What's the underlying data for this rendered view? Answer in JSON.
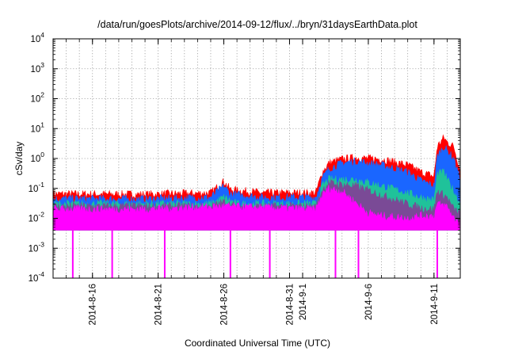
{
  "chart_data": {
    "type": "line",
    "title": "/data/run/goesPlots/archive/2014-09-12/flux/../bryn/31daysEarthData.plot",
    "xlabel": "Coordinated Universal Time (UTC)",
    "ylabel": "cSv/day",
    "y_scale": "log",
    "ylim": [
      0.0001,
      10000
    ],
    "y_ticks": [
      {
        "value": 0.0001,
        "base": "10",
        "exp": "-4"
      },
      {
        "value": 0.001,
        "base": "10",
        "exp": "-3"
      },
      {
        "value": 0.01,
        "base": "10",
        "exp": "-2"
      },
      {
        "value": 0.1,
        "base": "10",
        "exp": "-1"
      },
      {
        "value": 1,
        "base": "10",
        "exp": "0"
      },
      {
        "value": 10,
        "base": "10",
        "exp": "1"
      },
      {
        "value": 100,
        "base": "10",
        "exp": "2"
      },
      {
        "value": 1000,
        "base": "10",
        "exp": "3"
      },
      {
        "value": 10000,
        "base": "10",
        "exp": "4"
      }
    ],
    "xlim": [
      "2014-08-13",
      "2014-09-13"
    ],
    "x_ticks": [
      {
        "date": "2014-08-16",
        "label": "2014-8-16"
      },
      {
        "date": "2014-08-21",
        "label": "2014-8-21"
      },
      {
        "date": "2014-08-26",
        "label": "2014-8-26"
      },
      {
        "date": "2014-08-31",
        "label": "2014-8-31"
      },
      {
        "date": "2014-09-01",
        "label": "2014-9-1"
      },
      {
        "date": "2014-09-06",
        "label": "2014-9-6"
      },
      {
        "date": "2014-09-11",
        "label": "2014-9-11"
      }
    ],
    "grid": true,
    "legend": "none",
    "series": [
      {
        "color": "#ff0000",
        "points": [
          [
            "2014-08-13",
            0.065
          ],
          [
            "2014-08-20",
            0.063
          ],
          [
            "2014-08-25",
            0.07
          ],
          [
            "2014-08-26",
            0.17
          ],
          [
            "2014-08-26 12:00",
            0.09
          ],
          [
            "2014-08-29",
            0.07
          ],
          [
            "2014-09-02",
            0.07
          ],
          [
            "2014-09-02 12:00",
            0.35
          ],
          [
            "2014-09-03",
            0.7
          ],
          [
            "2014-09-04",
            0.95
          ],
          [
            "2014-09-05",
            1.05
          ],
          [
            "2014-09-07",
            0.95
          ],
          [
            "2014-09-09",
            0.6
          ],
          [
            "2014-09-10",
            0.35
          ],
          [
            "2014-09-11",
            0.25
          ],
          [
            "2014-09-11 06:00",
            2.5
          ],
          [
            "2014-09-11 18:00",
            5.0
          ],
          [
            "2014-09-12",
            3.5
          ],
          [
            "2014-09-12 12:00",
            2.5
          ],
          [
            "2014-09-13",
            0.4
          ]
        ]
      },
      {
        "color": "#1a66ff",
        "points": [
          [
            "2014-08-13",
            0.045
          ],
          [
            "2014-08-20",
            0.044
          ],
          [
            "2014-08-25",
            0.05
          ],
          [
            "2014-08-26",
            0.12
          ],
          [
            "2014-08-26 12:00",
            0.065
          ],
          [
            "2014-08-29",
            0.05
          ],
          [
            "2014-09-02",
            0.05
          ],
          [
            "2014-09-02 12:00",
            0.22
          ],
          [
            "2014-09-03",
            0.45
          ],
          [
            "2014-09-04",
            0.7
          ],
          [
            "2014-09-05",
            0.8
          ],
          [
            "2014-09-07",
            0.6
          ],
          [
            "2014-09-09",
            0.35
          ],
          [
            "2014-09-10",
            0.18
          ],
          [
            "2014-09-11",
            0.12
          ],
          [
            "2014-09-11 06:00",
            1.2
          ],
          [
            "2014-09-11 18:00",
            2.5
          ],
          [
            "2014-09-12",
            1.8
          ],
          [
            "2014-09-12 12:00",
            1.0
          ],
          [
            "2014-09-13",
            0.2
          ]
        ]
      },
      {
        "color": "#1fc29a",
        "points": [
          [
            "2014-08-13",
            0.03
          ],
          [
            "2014-08-25",
            0.03
          ],
          [
            "2014-08-26",
            0.05
          ],
          [
            "2014-08-27",
            0.03
          ],
          [
            "2014-09-02",
            0.03
          ],
          [
            "2014-09-02 12:00",
            0.12
          ],
          [
            "2014-09-03",
            0.2
          ],
          [
            "2014-09-05",
            0.2
          ],
          [
            "2014-09-07",
            0.12
          ],
          [
            "2014-09-09",
            0.07
          ],
          [
            "2014-09-10",
            0.05
          ],
          [
            "2014-09-11",
            0.04
          ],
          [
            "2014-09-11 06:00",
            0.3
          ],
          [
            "2014-09-11 18:00",
            0.35
          ],
          [
            "2014-09-12",
            0.2
          ],
          [
            "2014-09-12 12:00",
            0.08
          ],
          [
            "2014-09-13",
            0.03
          ]
        ]
      },
      {
        "color": "#7a4a96",
        "points": [
          [
            "2014-08-13",
            0.025
          ],
          [
            "2014-08-25",
            0.025
          ],
          [
            "2014-08-26",
            0.035
          ],
          [
            "2014-08-27",
            0.025
          ],
          [
            "2014-09-02",
            0.025
          ],
          [
            "2014-09-02 12:00",
            0.09
          ],
          [
            "2014-09-03",
            0.15
          ],
          [
            "2014-09-05",
            0.12
          ],
          [
            "2014-09-07",
            0.06
          ],
          [
            "2014-09-09",
            0.03
          ],
          [
            "2014-09-10",
            0.022
          ],
          [
            "2014-09-11",
            0.02
          ],
          [
            "2014-09-11 06:00",
            0.08
          ],
          [
            "2014-09-12",
            0.05
          ],
          [
            "2014-09-12 12:00",
            0.02
          ],
          [
            "2014-09-13",
            0.015
          ]
        ]
      },
      {
        "color": "#ff00ff",
        "points": [
          [
            "2014-08-13",
            0.02
          ],
          [
            "2014-08-20",
            0.02
          ],
          [
            "2014-08-26",
            0.025
          ],
          [
            "2014-09-02",
            0.02
          ],
          [
            "2014-09-02 12:00",
            0.06
          ],
          [
            "2014-09-03",
            0.1
          ],
          [
            "2014-09-04",
            0.08
          ],
          [
            "2014-09-05",
            0.035
          ],
          [
            "2014-09-06",
            0.015
          ],
          [
            "2014-09-07",
            0.012
          ],
          [
            "2014-09-09",
            0.01
          ],
          [
            "2014-09-10",
            0.012
          ],
          [
            "2014-09-11",
            0.012
          ],
          [
            "2014-09-11 06:00",
            0.03
          ],
          [
            "2014-09-12",
            0.025
          ],
          [
            "2014-09-12 12:00",
            0.01
          ],
          [
            "2014-09-13",
            0.008
          ]
        ]
      }
    ],
    "floor_series": {
      "color": "#ff00ff",
      "value": 0.004
    },
    "dropouts": [
      "2014-08-14 12:00",
      "2014-08-17 12:00",
      "2014-08-21 12:00",
      "2014-08-26 12:00",
      "2014-08-29 12:00",
      "2014-09-03 12:00",
      "2014-09-05 06:00",
      "2014-09-11 06:00"
    ],
    "dropout_floor": 0.0001
  }
}
